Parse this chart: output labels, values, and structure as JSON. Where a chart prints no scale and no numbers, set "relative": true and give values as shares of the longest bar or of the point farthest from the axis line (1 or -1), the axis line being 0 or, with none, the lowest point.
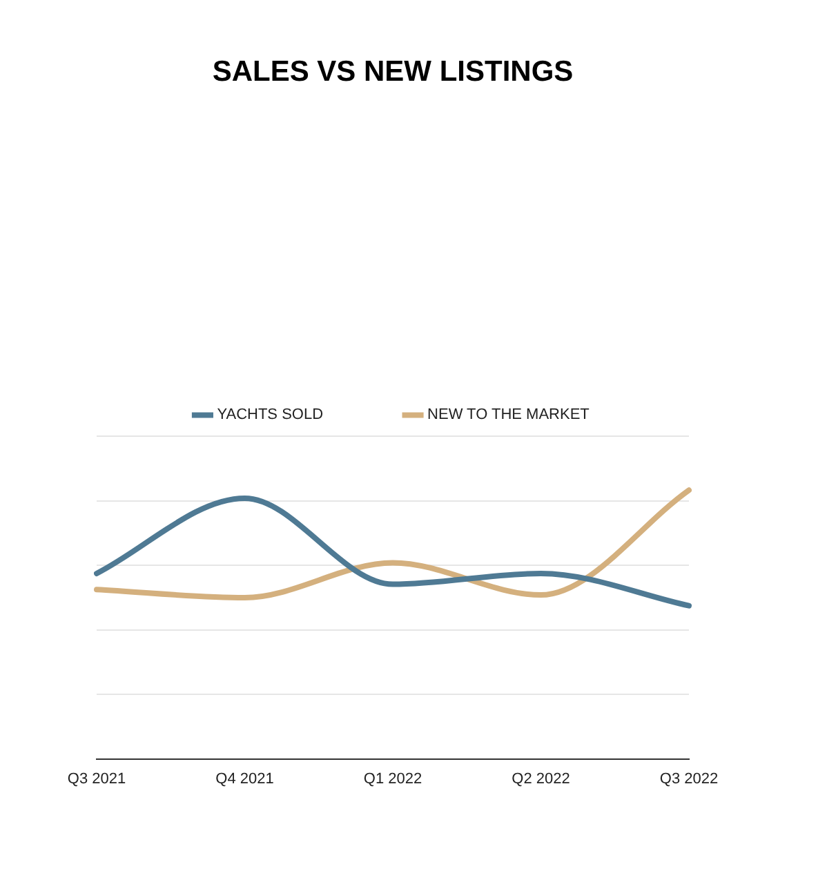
{
  "chart_data": {
    "type": "line",
    "title": "SALES VS NEW LISTINGS",
    "categories": [
      "Q3 2021",
      "Q4 2021",
      "Q1 2022",
      "Q2 2022",
      "Q3 2022"
    ],
    "relative": true,
    "grid": "y",
    "legend": "top",
    "series": [
      {
        "name": "YACHTS SOLD",
        "color": "#4f7a94",
        "values": [
          0.69,
          0.97,
          0.65,
          0.69,
          0.57
        ]
      },
      {
        "name": "NEW TO THE MARKET",
        "color": "#d4b07e",
        "values": [
          0.63,
          0.6,
          0.73,
          0.61,
          1
        ]
      }
    ]
  }
}
